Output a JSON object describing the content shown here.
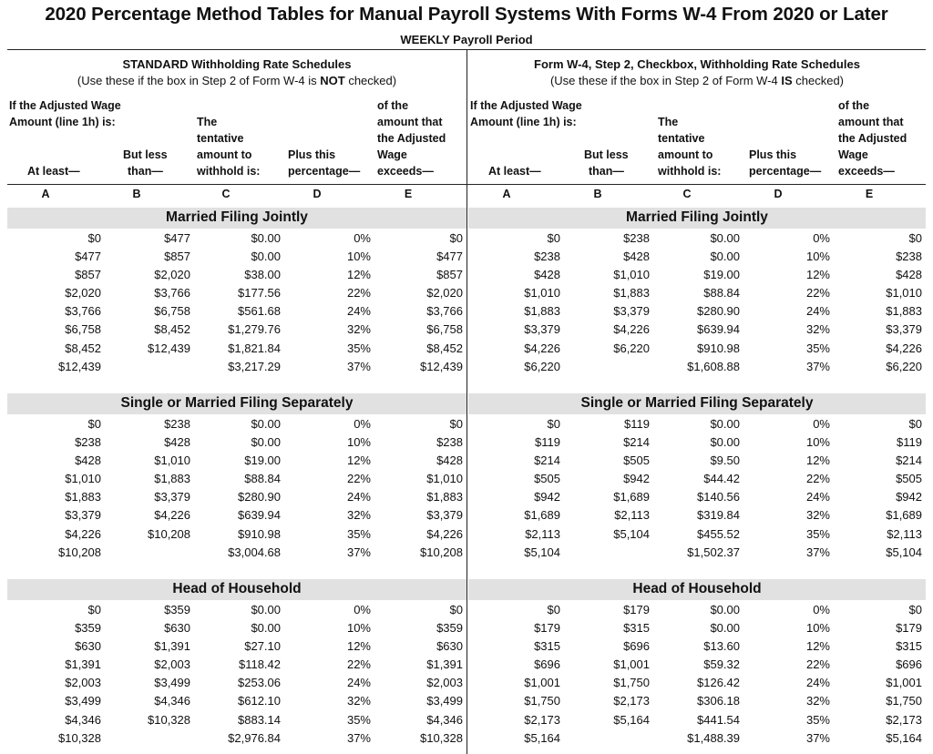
{
  "title": "2020 Percentage Method Tables for Manual Payroll Systems With Forms W-4 From 2020 or Later",
  "subtitle": "WEEKLY Payroll Period",
  "col_letters": [
    "A",
    "B",
    "C",
    "D",
    "E"
  ],
  "left": {
    "title": "STANDARD Withholding Rate Schedules",
    "note_before": "(Use these if the box in Step 2 of Form W-4 is ",
    "note_emph": "NOT",
    "note_after": " checked)",
    "headers": {
      "if_line1": "If the Adjusted Wage",
      "if_line2": "Amount (line 1h) is:",
      "at_least": "At least—",
      "but_less_1": "But less",
      "but_less_2": "than—",
      "tent_1": "The",
      "tent_2": "tentative",
      "tent_3": "amount to",
      "tent_4": "withhold is:",
      "plus_1": "Plus this",
      "plus_2": "percentage—",
      "of_1": "of the",
      "of_2": "amount that",
      "of_3": "the Adjusted",
      "of_4": "Wage",
      "of_5": "exceeds—"
    },
    "sections": [
      {
        "title": "Married Filing Jointly",
        "rows": [
          [
            "$0",
            "$477",
            "$0.00",
            "0%",
            "$0"
          ],
          [
            "$477",
            "$857",
            "$0.00",
            "10%",
            "$477"
          ],
          [
            "$857",
            "$2,020",
            "$38.00",
            "12%",
            "$857"
          ],
          [
            "$2,020",
            "$3,766",
            "$177.56",
            "22%",
            "$2,020"
          ],
          [
            "$3,766",
            "$6,758",
            "$561.68",
            "24%",
            "$3,766"
          ],
          [
            "$6,758",
            "$8,452",
            "$1,279.76",
            "32%",
            "$6,758"
          ],
          [
            "$8,452",
            "$12,439",
            "$1,821.84",
            "35%",
            "$8,452"
          ],
          [
            "$12,439",
            "",
            "$3,217.29",
            "37%",
            "$12,439"
          ]
        ]
      },
      {
        "title": "Single or Married Filing Separately",
        "rows": [
          [
            "$0",
            "$238",
            "$0.00",
            "0%",
            "$0"
          ],
          [
            "$238",
            "$428",
            "$0.00",
            "10%",
            "$238"
          ],
          [
            "$428",
            "$1,010",
            "$19.00",
            "12%",
            "$428"
          ],
          [
            "$1,010",
            "$1,883",
            "$88.84",
            "22%",
            "$1,010"
          ],
          [
            "$1,883",
            "$3,379",
            "$280.90",
            "24%",
            "$1,883"
          ],
          [
            "$3,379",
            "$4,226",
            "$639.94",
            "32%",
            "$3,379"
          ],
          [
            "$4,226",
            "$10,208",
            "$910.98",
            "35%",
            "$4,226"
          ],
          [
            "$10,208",
            "",
            "$3,004.68",
            "37%",
            "$10,208"
          ]
        ]
      },
      {
        "title": "Head of Household",
        "rows": [
          [
            "$0",
            "$359",
            "$0.00",
            "0%",
            "$0"
          ],
          [
            "$359",
            "$630",
            "$0.00",
            "10%",
            "$359"
          ],
          [
            "$630",
            "$1,391",
            "$27.10",
            "12%",
            "$630"
          ],
          [
            "$1,391",
            "$2,003",
            "$118.42",
            "22%",
            "$1,391"
          ],
          [
            "$2,003",
            "$3,499",
            "$253.06",
            "24%",
            "$2,003"
          ],
          [
            "$3,499",
            "$4,346",
            "$612.10",
            "32%",
            "$3,499"
          ],
          [
            "$4,346",
            "$10,328",
            "$883.14",
            "35%",
            "$4,346"
          ],
          [
            "$10,328",
            "",
            "$2,976.84",
            "37%",
            "$10,328"
          ]
        ]
      }
    ]
  },
  "right": {
    "title": "Form W-4, Step 2, Checkbox, Withholding Rate Schedules",
    "note_before": "(Use these if the box in Step 2 of Form W-4 ",
    "note_emph": "IS",
    "note_after": " checked)",
    "headers": {
      "if_line1": "If the Adjusted Wage",
      "if_line2": "Amount (line 1h) is:",
      "at_least": "At least—",
      "but_less_1": "But less",
      "but_less_2": "than—",
      "tent_1": "The",
      "tent_2": "tentative",
      "tent_3": "amount to",
      "tent_4": "withhold is:",
      "plus_1": "Plus this",
      "plus_2": "percentage—",
      "of_1": "of the",
      "of_2": "amount that",
      "of_3": "the Adjusted",
      "of_4": "Wage",
      "of_5": "exceeds—"
    },
    "sections": [
      {
        "title": "Married Filing Jointly",
        "rows": [
          [
            "$0",
            "$238",
            "$0.00",
            "0%",
            "$0"
          ],
          [
            "$238",
            "$428",
            "$0.00",
            "10%",
            "$238"
          ],
          [
            "$428",
            "$1,010",
            "$19.00",
            "12%",
            "$428"
          ],
          [
            "$1,010",
            "$1,883",
            "$88.84",
            "22%",
            "$1,010"
          ],
          [
            "$1,883",
            "$3,379",
            "$280.90",
            "24%",
            "$1,883"
          ],
          [
            "$3,379",
            "$4,226",
            "$639.94",
            "32%",
            "$3,379"
          ],
          [
            "$4,226",
            "$6,220",
            "$910.98",
            "35%",
            "$4,226"
          ],
          [
            "$6,220",
            "",
            "$1,608.88",
            "37%",
            "$6,220"
          ]
        ]
      },
      {
        "title": "Single or Married Filing Separately",
        "rows": [
          [
            "$0",
            "$119",
            "$0.00",
            "0%",
            "$0"
          ],
          [
            "$119",
            "$214",
            "$0.00",
            "10%",
            "$119"
          ],
          [
            "$214",
            "$505",
            "$9.50",
            "12%",
            "$214"
          ],
          [
            "$505",
            "$942",
            "$44.42",
            "22%",
            "$505"
          ],
          [
            "$942",
            "$1,689",
            "$140.56",
            "24%",
            "$942"
          ],
          [
            "$1,689",
            "$2,113",
            "$319.84",
            "32%",
            "$1,689"
          ],
          [
            "$2,113",
            "$5,104",
            "$455.52",
            "35%",
            "$2,113"
          ],
          [
            "$5,104",
            "",
            "$1,502.37",
            "37%",
            "$5,104"
          ]
        ]
      },
      {
        "title": "Head of Household",
        "rows": [
          [
            "$0",
            "$179",
            "$0.00",
            "0%",
            "$0"
          ],
          [
            "$179",
            "$315",
            "$0.00",
            "10%",
            "$179"
          ],
          [
            "$315",
            "$696",
            "$13.60",
            "12%",
            "$315"
          ],
          [
            "$696",
            "$1,001",
            "$59.32",
            "22%",
            "$696"
          ],
          [
            "$1,001",
            "$1,750",
            "$126.42",
            "24%",
            "$1,001"
          ],
          [
            "$1,750",
            "$2,173",
            "$306.18",
            "32%",
            "$1,750"
          ],
          [
            "$2,173",
            "$5,164",
            "$441.54",
            "35%",
            "$2,173"
          ],
          [
            "$5,164",
            "",
            "$1,488.39",
            "37%",
            "$5,164"
          ]
        ]
      }
    ]
  }
}
